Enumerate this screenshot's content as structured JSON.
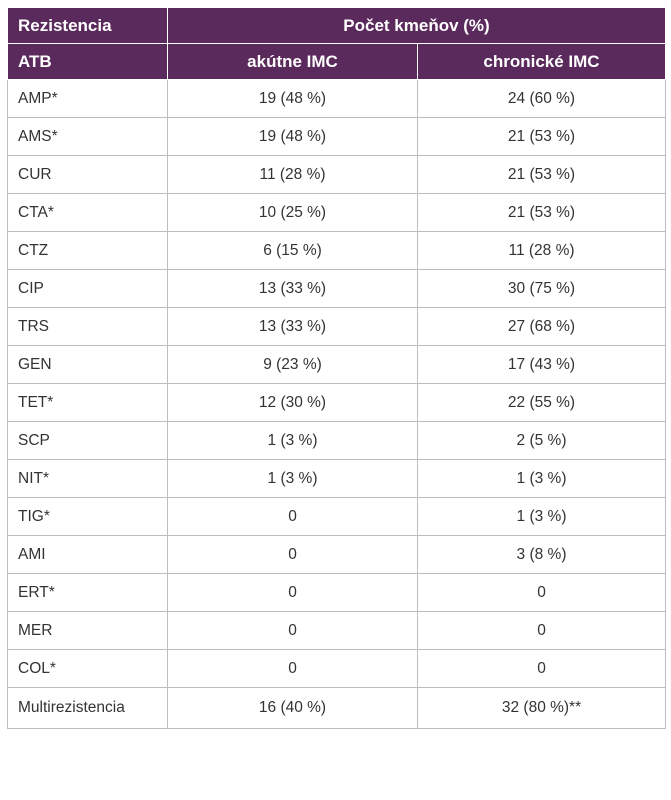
{
  "header": {
    "resistance_label": "Rezistencia",
    "group_label": "Počet kmeňov (%)",
    "atb_label": "ATB",
    "acute_label": "akútne IMC",
    "chronic_label": "chronické IMC"
  },
  "rows": [
    {
      "atb": "AMP*",
      "acute": "19 (48 %)",
      "chronic": "24 (60 %)"
    },
    {
      "atb": "AMS*",
      "acute": "19 (48 %)",
      "chronic": "21 (53 %)"
    },
    {
      "atb": "CUR",
      "acute": "11 (28 %)",
      "chronic": "21 (53 %)"
    },
    {
      "atb": "CTA*",
      "acute": "10 (25 %)",
      "chronic": "21 (53 %)"
    },
    {
      "atb": "CTZ",
      "acute": "6 (15 %)",
      "chronic": "11 (28 %)"
    },
    {
      "atb": "CIP",
      "acute": "13 (33 %)",
      "chronic": "30 (75 %)"
    },
    {
      "atb": "TRS",
      "acute": "13 (33 %)",
      "chronic": "27 (68 %)"
    },
    {
      "atb": "GEN",
      "acute": "9 (23 %)",
      "chronic": "17 (43 %)"
    },
    {
      "atb": "TET*",
      "acute": "12 (30 %)",
      "chronic": "22 (55 %)"
    },
    {
      "atb": "SCP",
      "acute": "1 (3 %)",
      "chronic": "2 (5 %)"
    },
    {
      "atb": "NIT*",
      "acute": "1 (3 %)",
      "chronic": "1 (3 %)"
    },
    {
      "atb": "TIG*",
      "acute": "0",
      "chronic": "1 (3 %)"
    },
    {
      "atb": "AMI",
      "acute": "0",
      "chronic": "3 (8 %)"
    },
    {
      "atb": "ERT*",
      "acute": "0",
      "chronic": "0"
    },
    {
      "atb": "MER",
      "acute": "0",
      "chronic": "0"
    },
    {
      "atb": "COL*",
      "acute": "0",
      "chronic": "0"
    },
    {
      "atb": "Multirezistencia",
      "acute": "16 (40 %)",
      "chronic": "32 (80 %)**"
    }
  ],
  "colors": {
    "header_bg": "#5b2a5c",
    "header_text": "#ffffff",
    "border": "#bdbdbd",
    "body_text": "#333333"
  }
}
